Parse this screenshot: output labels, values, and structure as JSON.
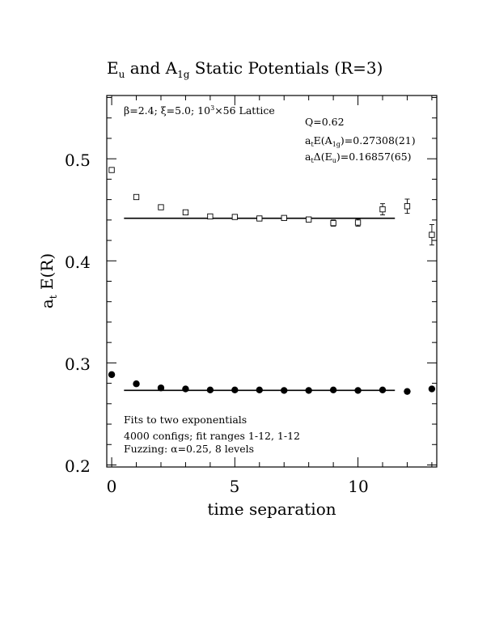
{
  "chart_data": {
    "type": "scatter",
    "title": {
      "main": "E",
      "main_sub": "u",
      "mid": " and A",
      "mid_sub": "1g",
      "tail": " Static Potentials (R=3)"
    },
    "xlabel": "time separation",
    "ylabel": {
      "main": "a",
      "sub": "t",
      "tail": " E(R)"
    },
    "xlim": [
      -0.2,
      13.2
    ],
    "ylim": [
      0.198,
      0.562
    ],
    "x_ticks": [
      0,
      5,
      10
    ],
    "y_ticks": [
      0.2,
      0.3,
      0.4,
      0.5
    ],
    "x_tick_labels": [
      "0",
      "5",
      "10"
    ],
    "y_tick_labels": [
      "0.2",
      "0.3",
      "0.4",
      "0.5"
    ],
    "grid": false,
    "lattice_label": {
      "pre": "β=2.4; ξ=5.0; 10",
      "sup": "3",
      "post": "×56 Lattice"
    },
    "fit_stats": {
      "q": "Q=0.62",
      "a1g": {
        "a": "a",
        "a_sub": "t",
        "mid": "E(A",
        "mid_sub": "1g",
        "tail": ")=0.27308(21)"
      },
      "eu": {
        "a": "a",
        "a_sub": "t",
        "mid": "Δ(E",
        "mid_sub": "u",
        "tail": ")=0.16857(65)"
      }
    },
    "notes": [
      "Fits to two exponentials",
      "4000 configs; fit ranges 1-12, 1-12",
      "Fuzzing: α=0.25, 8 levels"
    ],
    "series": [
      {
        "marker": "open-square",
        "points": [
          {
            "x": 0,
            "y": 0.489,
            "err": 0.002
          },
          {
            "x": 1,
            "y": 0.4625,
            "err": 0.002
          },
          {
            "x": 2,
            "y": 0.4525,
            "err": 0.0015
          },
          {
            "x": 3,
            "y": 0.4475,
            "err": 0.002
          },
          {
            "x": 4,
            "y": 0.4435,
            "err": 0.002
          },
          {
            "x": 5,
            "y": 0.443,
            "err": 0.002
          },
          {
            "x": 6,
            "y": 0.4415,
            "err": 0.002
          },
          {
            "x": 7,
            "y": 0.442,
            "err": 0.002
          },
          {
            "x": 8,
            "y": 0.4405,
            "err": 0.002
          },
          {
            "x": 9,
            "y": 0.437,
            "err": 0.003
          },
          {
            "x": 10,
            "y": 0.4375,
            "err": 0.0035
          },
          {
            "x": 11,
            "y": 0.4505,
            "err": 0.0055
          },
          {
            "x": 12,
            "y": 0.4535,
            "err": 0.007
          },
          {
            "x": 13,
            "y": 0.4255,
            "err": 0.01
          }
        ],
        "fit": {
          "x": [
            0.5,
            11.5
          ],
          "y": 0.4417
        }
      },
      {
        "marker": "filled-circle",
        "points": [
          {
            "x": 0,
            "y": 0.2885
          },
          {
            "x": 1,
            "y": 0.2795
          },
          {
            "x": 2,
            "y": 0.2755
          },
          {
            "x": 3,
            "y": 0.2745
          },
          {
            "x": 4,
            "y": 0.2735
          },
          {
            "x": 5,
            "y": 0.2735
          },
          {
            "x": 6,
            "y": 0.2735
          },
          {
            "x": 7,
            "y": 0.273
          },
          {
            "x": 8,
            "y": 0.273
          },
          {
            "x": 9,
            "y": 0.2735
          },
          {
            "x": 10,
            "y": 0.273
          },
          {
            "x": 11,
            "y": 0.2735
          },
          {
            "x": 12,
            "y": 0.272
          },
          {
            "x": 13,
            "y": 0.2745
          }
        ],
        "fit": {
          "x": [
            0.5,
            11.5
          ],
          "y": 0.2731
        }
      }
    ]
  }
}
